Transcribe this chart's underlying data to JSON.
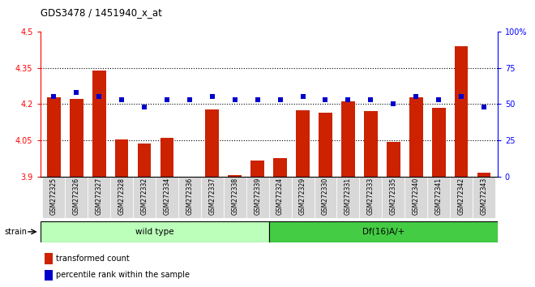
{
  "title": "GDS3478 / 1451940_x_at",
  "categories": [
    "GSM272325",
    "GSM272326",
    "GSM272327",
    "GSM272328",
    "GSM272332",
    "GSM272334",
    "GSM272336",
    "GSM272337",
    "GSM272338",
    "GSM272339",
    "GSM272324",
    "GSM272329",
    "GSM272330",
    "GSM272331",
    "GSM272333",
    "GSM272335",
    "GSM272340",
    "GSM272341",
    "GSM272342",
    "GSM272343"
  ],
  "red_values": [
    4.228,
    4.222,
    4.338,
    4.052,
    4.038,
    4.06,
    3.9,
    4.178,
    3.905,
    3.965,
    3.975,
    4.173,
    4.165,
    4.21,
    4.172,
    4.045,
    4.228,
    4.185,
    4.44,
    3.915
  ],
  "blue_values": [
    55,
    58,
    55,
    53,
    48,
    53,
    53,
    55,
    53,
    53,
    53,
    55,
    53,
    53,
    53,
    50,
    55,
    53,
    55,
    48
  ],
  "ymin": 3.9,
  "ymax": 4.5,
  "y2min": 0,
  "y2max": 100,
  "bar_color": "#cc2200",
  "dot_color": "#0000cc",
  "wild_type_count": 10,
  "df_count": 10,
  "wild_type_label": "wild type",
  "df_label": "Df(16)A/+",
  "strain_label": "strain",
  "legend1": "transformed count",
  "legend2": "percentile rank within the sample",
  "grid_lines": [
    4.05,
    4.2,
    4.35
  ],
  "wt_color": "#bbffbb",
  "df_color": "#44cc44",
  "xtick_bg": "#dddddd"
}
